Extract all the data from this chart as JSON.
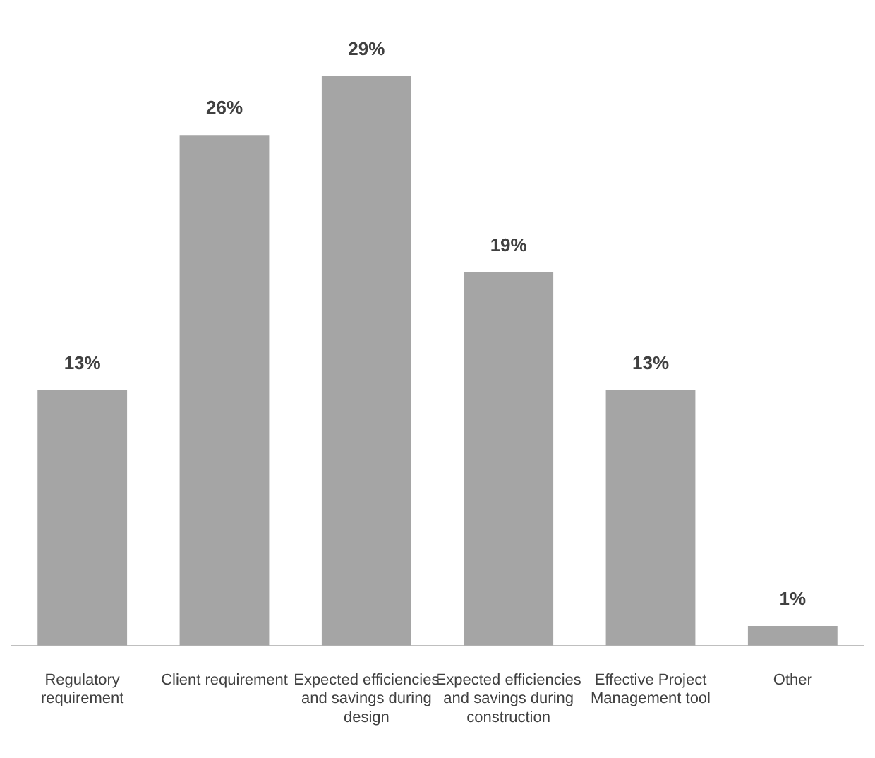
{
  "chart_data": {
    "type": "bar",
    "categories": [
      "Regulatory requirement",
      "Client requirement",
      "Expected efficiencies and savings during design",
      "Expected efficiencies and savings during construction",
      "Effective Project Management tool",
      "Other"
    ],
    "values": [
      13,
      26,
      29,
      19,
      13,
      1
    ],
    "value_labels": [
      "13%",
      "26%",
      "29%",
      "19%",
      "13%",
      "1%"
    ],
    "color": "#a5a5a5",
    "grid": false,
    "legend": false
  }
}
